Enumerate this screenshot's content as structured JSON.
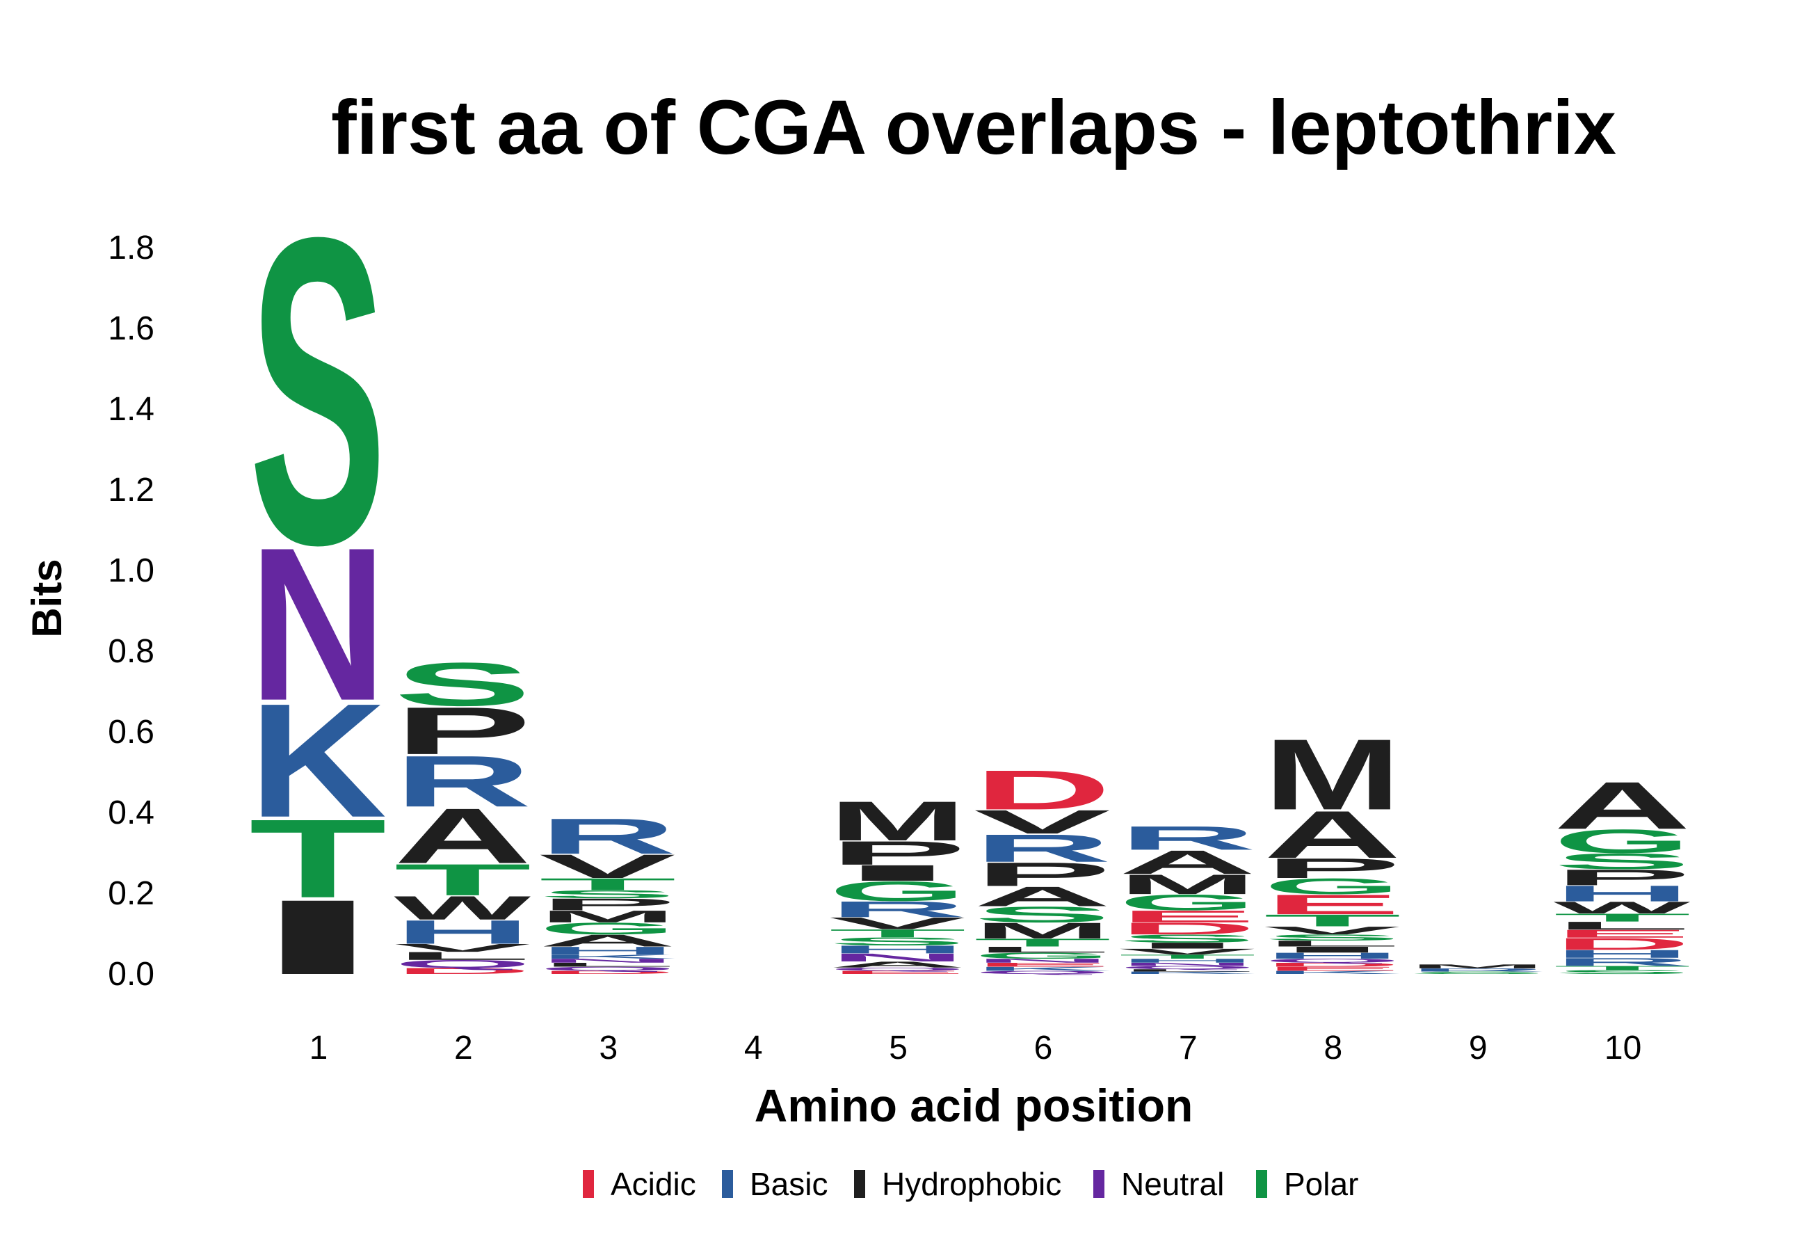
{
  "chart_data": {
    "type": "sequence-logo",
    "title": "first aa of CGA overlaps - leptothrix",
    "xlabel": "Amino acid position",
    "ylabel": "Bits",
    "ylim": [
      0,
      1.8
    ],
    "yticks": [
      "0.0",
      "0.2",
      "0.4",
      "0.6",
      "0.8",
      "1.0",
      "1.2",
      "1.4",
      "1.6",
      "1.8"
    ],
    "x": [
      1,
      2,
      3,
      4,
      5,
      6,
      7,
      8,
      9,
      10
    ],
    "color_scheme": {
      "Acidic": "#E0263E",
      "Basic": "#2B5C9C",
      "Hydrophobic": "#1F1F1F",
      "Neutral": "#6527A0",
      "Polar": "#0F9444"
    },
    "legend": [
      "Acidic",
      "Basic",
      "Hydrophobic",
      "Neutral",
      "Polar"
    ],
    "legend_position": "bottom",
    "grid": false,
    "positions": [
      {
        "pos": 1,
        "letters": [
          {
            "aa": "I",
            "class": "Hydrophobic",
            "bits": 0.19
          },
          {
            "aa": "T",
            "class": "Polar",
            "bits": 0.2
          },
          {
            "aa": "K",
            "class": "Basic",
            "bits": 0.29
          },
          {
            "aa": "N",
            "class": "Neutral",
            "bits": 0.39
          },
          {
            "aa": "S",
            "class": "Polar",
            "bits": 0.78
          }
        ]
      },
      {
        "pos": 2,
        "letters": [
          {
            "aa": "D",
            "class": "Acidic",
            "bits": 0.015
          },
          {
            "aa": "Q",
            "class": "Neutral",
            "bits": 0.02
          },
          {
            "aa": "L",
            "class": "Hydrophobic",
            "bits": 0.02
          },
          {
            "aa": "V",
            "class": "Hydrophobic",
            "bits": 0.02
          },
          {
            "aa": "H",
            "class": "Basic",
            "bits": 0.06
          },
          {
            "aa": "W",
            "class": "Hydrophobic",
            "bits": 0.06
          },
          {
            "aa": "T",
            "class": "Polar",
            "bits": 0.08
          },
          {
            "aa": "A",
            "class": "Hydrophobic",
            "bits": 0.14
          },
          {
            "aa": "R",
            "class": "Basic",
            "bits": 0.13
          },
          {
            "aa": "P",
            "class": "Hydrophobic",
            "bits": 0.12
          },
          {
            "aa": "S",
            "class": "Polar",
            "bits": 0.11
          }
        ]
      },
      {
        "pos": 3,
        "letters": [
          {
            "aa": "D",
            "class": "Acidic",
            "bits": 0.008
          },
          {
            "aa": "Q",
            "class": "Neutral",
            "bits": 0.01
          },
          {
            "aa": "L",
            "class": "Hydrophobic",
            "bits": 0.01
          },
          {
            "aa": "N",
            "class": "Neutral",
            "bits": 0.01
          },
          {
            "aa": "K",
            "class": "Basic",
            "bits": 0.01
          },
          {
            "aa": "H",
            "class": "Basic",
            "bits": 0.02
          },
          {
            "aa": "A",
            "class": "Hydrophobic",
            "bits": 0.03
          },
          {
            "aa": "G",
            "class": "Polar",
            "bits": 0.03
          },
          {
            "aa": "M",
            "class": "Hydrophobic",
            "bits": 0.03
          },
          {
            "aa": "P",
            "class": "Hydrophobic",
            "bits": 0.03
          },
          {
            "aa": "S",
            "class": "Polar",
            "bits": 0.02
          },
          {
            "aa": "T",
            "class": "Polar",
            "bits": 0.03
          },
          {
            "aa": "V",
            "class": "Hydrophobic",
            "bits": 0.06
          },
          {
            "aa": "R",
            "class": "Basic",
            "bits": 0.09
          }
        ]
      },
      {
        "pos": 4,
        "letters": []
      },
      {
        "pos": 5,
        "letters": [
          {
            "aa": "E",
            "class": "Acidic",
            "bits": 0.008
          },
          {
            "aa": "Q",
            "class": "Neutral",
            "bits": 0.008
          },
          {
            "aa": "A",
            "class": "Hydrophobic",
            "bits": 0.015
          },
          {
            "aa": "N",
            "class": "Neutral",
            "bits": 0.02
          },
          {
            "aa": "H",
            "class": "Basic",
            "bits": 0.02
          },
          {
            "aa": "S",
            "class": "Polar",
            "bits": 0.02
          },
          {
            "aa": "T",
            "class": "Polar",
            "bits": 0.02
          },
          {
            "aa": "V",
            "class": "Hydrophobic",
            "bits": 0.03
          },
          {
            "aa": "R",
            "class": "Basic",
            "bits": 0.04
          },
          {
            "aa": "G",
            "class": "Polar",
            "bits": 0.05
          },
          {
            "aa": "I",
            "class": "Hydrophobic",
            "bits": 0.04
          },
          {
            "aa": "P",
            "class": "Hydrophobic",
            "bits": 0.06
          },
          {
            "aa": "M",
            "class": "Hydrophobic",
            "bits": 0.1
          }
        ]
      },
      {
        "pos": 6,
        "letters": [
          {
            "aa": "Q",
            "class": "Neutral",
            "bits": 0.008
          },
          {
            "aa": "K",
            "class": "Basic",
            "bits": 0.01
          },
          {
            "aa": "E",
            "class": "Acidic",
            "bits": 0.01
          },
          {
            "aa": "N",
            "class": "Neutral",
            "bits": 0.01
          },
          {
            "aa": "G",
            "class": "Polar",
            "bits": 0.015
          },
          {
            "aa": "L",
            "class": "Hydrophobic",
            "bits": 0.015
          },
          {
            "aa": "T",
            "class": "Polar",
            "bits": 0.02
          },
          {
            "aa": "M",
            "class": "Hydrophobic",
            "bits": 0.04
          },
          {
            "aa": "S",
            "class": "Polar",
            "bits": 0.04
          },
          {
            "aa": "A",
            "class": "Hydrophobic",
            "bits": 0.05
          },
          {
            "aa": "P",
            "class": "Hydrophobic",
            "bits": 0.06
          },
          {
            "aa": "R",
            "class": "Basic",
            "bits": 0.07
          },
          {
            "aa": "V",
            "class": "Hydrophobic",
            "bits": 0.06
          },
          {
            "aa": "D",
            "class": "Acidic",
            "bits": 0.1
          }
        ]
      },
      {
        "pos": 7,
        "letters": [
          {
            "aa": "K",
            "class": "Basic",
            "bits": 0.006
          },
          {
            "aa": "L",
            "class": "Hydrophobic",
            "bits": 0.006
          },
          {
            "aa": "Q",
            "class": "Neutral",
            "bits": 0.008
          },
          {
            "aa": "N",
            "class": "Neutral",
            "bits": 0.008
          },
          {
            "aa": "H",
            "class": "Basic",
            "bits": 0.01
          },
          {
            "aa": "T",
            "class": "Polar",
            "bits": 0.01
          },
          {
            "aa": "V",
            "class": "Hydrophobic",
            "bits": 0.015
          },
          {
            "aa": "I",
            "class": "Hydrophobic",
            "bits": 0.015
          },
          {
            "aa": "S",
            "class": "Polar",
            "bits": 0.02
          },
          {
            "aa": "D",
            "class": "Acidic",
            "bits": 0.03
          },
          {
            "aa": "E",
            "class": "Acidic",
            "bits": 0.03
          },
          {
            "aa": "G",
            "class": "Polar",
            "bits": 0.04
          },
          {
            "aa": "M",
            "class": "Hydrophobic",
            "bits": 0.05
          },
          {
            "aa": "A",
            "class": "Hydrophobic",
            "bits": 0.06
          },
          {
            "aa": "R",
            "class": "Basic",
            "bits": 0.06
          }
        ]
      },
      {
        "pos": 8,
        "letters": [
          {
            "aa": "K",
            "class": "Basic",
            "bits": 0.008
          },
          {
            "aa": "E",
            "class": "Acidic",
            "bits": 0.01
          },
          {
            "aa": "D",
            "class": "Acidic",
            "bits": 0.01
          },
          {
            "aa": "Q",
            "class": "Neutral",
            "bits": 0.01
          },
          {
            "aa": "H",
            "class": "Basic",
            "bits": 0.015
          },
          {
            "aa": "I",
            "class": "Hydrophobic",
            "bits": 0.015
          },
          {
            "aa": "L",
            "class": "Hydrophobic",
            "bits": 0.015
          },
          {
            "aa": "S",
            "class": "Polar",
            "bits": 0.015
          },
          {
            "aa": "V",
            "class": "Hydrophobic",
            "bits": 0.02
          },
          {
            "aa": "T",
            "class": "Polar",
            "bits": 0.03
          },
          {
            "aa": "E",
            "class": "Acidic",
            "bits": 0.05
          },
          {
            "aa": "G",
            "class": "Polar",
            "bits": 0.04
          },
          {
            "aa": "P",
            "class": "Hydrophobic",
            "bits": 0.05
          },
          {
            "aa": "A",
            "class": "Hydrophobic",
            "bits": 0.12
          },
          {
            "aa": "M",
            "class": "Hydrophobic",
            "bits": 0.18
          }
        ]
      },
      {
        "pos": 9,
        "letters": [
          {
            "aa": "S",
            "class": "Polar",
            "bits": 0.006
          },
          {
            "aa": "R",
            "class": "Basic",
            "bits": 0.008
          },
          {
            "aa": "M",
            "class": "Hydrophobic",
            "bits": 0.01
          }
        ]
      },
      {
        "pos": 10,
        "letters": [
          {
            "aa": "S",
            "class": "Polar",
            "bits": 0.01
          },
          {
            "aa": "T",
            "class": "Polar",
            "bits": 0.01
          },
          {
            "aa": "R",
            "class": "Basic",
            "bits": 0.02
          },
          {
            "aa": "H",
            "class": "Basic",
            "bits": 0.02
          },
          {
            "aa": "D",
            "class": "Acidic",
            "bits": 0.03
          },
          {
            "aa": "E",
            "class": "Acidic",
            "bits": 0.02
          },
          {
            "aa": "L",
            "class": "Hydrophobic",
            "bits": 0.02
          },
          {
            "aa": "T",
            "class": "Polar",
            "bits": 0.02
          },
          {
            "aa": "W",
            "class": "Hydrophobic",
            "bits": 0.03
          },
          {
            "aa": "H",
            "class": "Basic",
            "bits": 0.04
          },
          {
            "aa": "P",
            "class": "Hydrophobic",
            "bits": 0.04
          },
          {
            "aa": "S",
            "class": "Polar",
            "bits": 0.04
          },
          {
            "aa": "G",
            "class": "Polar",
            "bits": 0.06
          },
          {
            "aa": "A",
            "class": "Hydrophobic",
            "bits": 0.12
          }
        ]
      }
    ]
  }
}
